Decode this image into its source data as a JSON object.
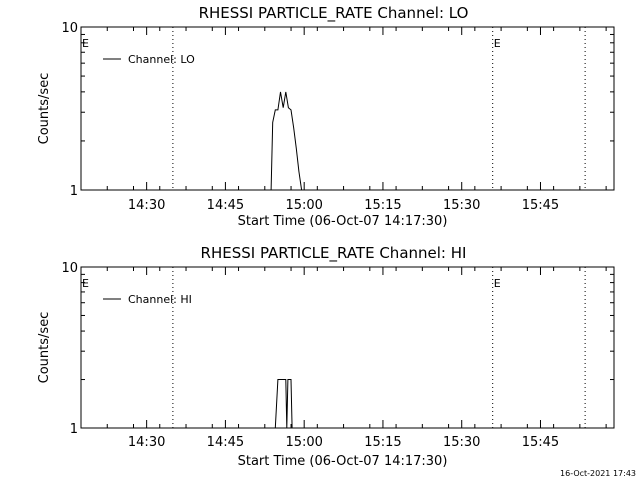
{
  "footer_timestamp": "16-Oct-2021 17:43",
  "chart_data": [
    {
      "type": "line",
      "title": "RHESSI PARTICLE_RATE Channel: LO",
      "xlabel": "Start Time (06-Oct-07 14:17:30)",
      "ylabel": "Counts/sec",
      "yscale": "log",
      "ylim": [
        1,
        10
      ],
      "ytick_labels": [
        "1",
        "10"
      ],
      "xlim_minutes": [
        0,
        101.5
      ],
      "xticks": [
        {
          "label": "14:30",
          "minutes": 12.5
        },
        {
          "label": "14:45",
          "minutes": 27.5
        },
        {
          "label": "15:00",
          "minutes": 42.5
        },
        {
          "label": "15:15",
          "minutes": 57.5
        },
        {
          "label": "15:30",
          "minutes": 72.5
        },
        {
          "label": "15:45",
          "minutes": 87.5
        }
      ],
      "markers": [
        {
          "minutes": 17.5,
          "label": ""
        },
        {
          "minutes": 78.4,
          "label": "E"
        },
        {
          "minutes": 96.0,
          "label": ""
        }
      ],
      "edge_label": "E",
      "legend": {
        "text": "Channel: LO",
        "position": "top-left"
      },
      "series": [
        {
          "x": [
            0,
            36.2,
            36.5,
            37.0,
            37.5,
            38.0,
            38.5,
            39.0,
            39.5,
            40.0,
            40.5,
            41.0,
            41.5,
            42.0,
            100.0
          ],
          "y": [
            1,
            1,
            2.6,
            3.1,
            3.1,
            4.0,
            3.2,
            4.0,
            3.2,
            3.1,
            2.4,
            1.8,
            1.3,
            1,
            1
          ]
        }
      ]
    },
    {
      "type": "line",
      "title": "RHESSI PARTICLE_RATE Channel: HI",
      "xlabel": "Start Time (06-Oct-07 14:17:30)",
      "ylabel": "Counts/sec",
      "yscale": "log",
      "ylim": [
        1,
        10
      ],
      "ytick_labels": [
        "1",
        "10"
      ],
      "xlim_minutes": [
        0,
        101.5
      ],
      "xticks": [
        {
          "label": "14:30",
          "minutes": 12.5
        },
        {
          "label": "14:45",
          "minutes": 27.5
        },
        {
          "label": "15:00",
          "minutes": 42.5
        },
        {
          "label": "15:15",
          "minutes": 57.5
        },
        {
          "label": "15:30",
          "minutes": 72.5
        },
        {
          "label": "15:45",
          "minutes": 87.5
        }
      ],
      "markers": [
        {
          "minutes": 17.5,
          "label": ""
        },
        {
          "minutes": 78.4,
          "label": "E"
        },
        {
          "minutes": 96.0,
          "label": ""
        }
      ],
      "edge_label": "E",
      "legend": {
        "text": "Channel: HI",
        "position": "top-left"
      },
      "series": [
        {
          "x": [
            0,
            37.0,
            37.5,
            39.0,
            39.2,
            39.4,
            40.0,
            40.2,
            100.0
          ],
          "y": [
            1,
            1,
            2,
            2,
            1,
            2,
            2,
            1,
            1
          ]
        }
      ]
    }
  ]
}
